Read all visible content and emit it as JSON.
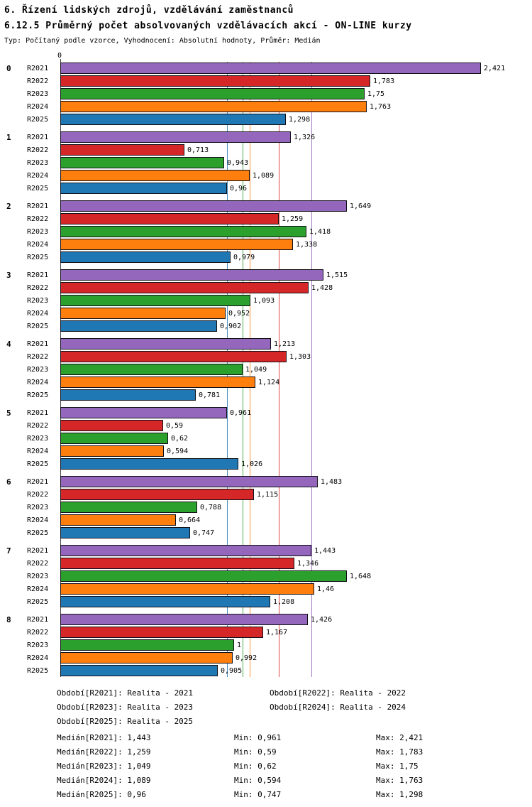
{
  "header": {
    "title": "6. Řízení lidských zdrojů, vzdělávání zaměstnanců",
    "subtitle": "6.12.5 Průměrný počet absolvovaných vzdělávacích akcí - ON-LINE kurzy",
    "meta": "Typ: Počítaný podle vzorce, Vyhodnocení: Absolutní hodnoty, Průměr: Medián"
  },
  "chart_data": {
    "type": "bar",
    "orientation": "horizontal",
    "axis_zero_label": "0",
    "xlim": [
      0,
      2.6
    ],
    "grid": "median-lines-per-series",
    "legend_position": "bottom",
    "categories": [
      "0",
      "1",
      "2",
      "3",
      "4",
      "5",
      "6",
      "7",
      "8"
    ],
    "series": [
      {
        "name": "R2021",
        "color": "#9467bd",
        "values": [
          2.421,
          1.326,
          1.649,
          1.515,
          1.213,
          0.961,
          1.483,
          1.443,
          1.426
        ],
        "labels": [
          "2,421",
          "1,326",
          "1,649",
          "1,515",
          "1,213",
          "0,961",
          "1,483",
          "1,443",
          "1,426"
        ],
        "median": 1.443
      },
      {
        "name": "R2022",
        "color": "#d62728",
        "values": [
          1.783,
          0.713,
          1.259,
          1.428,
          1.303,
          0.59,
          1.115,
          1.346,
          1.167
        ],
        "labels": [
          "1,783",
          "0,713",
          "1,259",
          "1,428",
          "1,303",
          "0,59",
          "1,115",
          "1,346",
          "1,167"
        ],
        "median": 1.259
      },
      {
        "name": "R2023",
        "color": "#2ca02c",
        "values": [
          1.75,
          0.943,
          1.418,
          1.093,
          1.049,
          0.62,
          0.788,
          1.648,
          1.0
        ],
        "labels": [
          "1,75",
          "0,943",
          "1,418",
          "1,093",
          "1,049",
          "0,62",
          "0,788",
          "1,648",
          "1"
        ],
        "median": 1.049
      },
      {
        "name": "R2024",
        "color": "#ff7f0e",
        "values": [
          1.763,
          1.089,
          1.338,
          0.952,
          1.124,
          0.594,
          0.664,
          1.46,
          0.992
        ],
        "labels": [
          "1,763",
          "1,089",
          "1,338",
          "0,952",
          "1,124",
          "0,594",
          "0,664",
          "1,46",
          "0,992"
        ],
        "median": 1.089
      },
      {
        "name": "R2025",
        "color": "#1f77b4",
        "values": [
          1.298,
          0.96,
          0.979,
          0.902,
          0.781,
          1.026,
          0.747,
          1.208,
          0.905
        ],
        "labels": [
          "1,298",
          "0,96",
          "0,979",
          "0,902",
          "0,781",
          "1,026",
          "0,747",
          "1,208",
          "0,905"
        ],
        "median": 0.96
      }
    ]
  },
  "legend": {
    "items": [
      "Období[R2021]: Realita - 2021",
      "Období[R2022]: Realita - 2022",
      "Období[R2023]: Realita - 2023",
      "Období[R2024]: Realita - 2024",
      "Období[R2025]: Realita - 2025"
    ]
  },
  "stats": [
    {
      "median": "Medián[R2021]: 1,443",
      "min": "Min: 0,961",
      "max": "Max: 2,421"
    },
    {
      "median": "Medián[R2022]: 1,259",
      "min": "Min: 0,59",
      "max": "Max: 1,783"
    },
    {
      "median": "Medián[R2023]: 1,049",
      "min": "Min: 0,62",
      "max": "Max: 1,75"
    },
    {
      "median": "Medián[R2024]: 1,089",
      "min": "Min: 0,594",
      "max": "Max: 1,763"
    },
    {
      "median": "Medián[R2025]: 0,96",
      "min": "Min: 0,747",
      "max": "Max: 1,298"
    }
  ]
}
